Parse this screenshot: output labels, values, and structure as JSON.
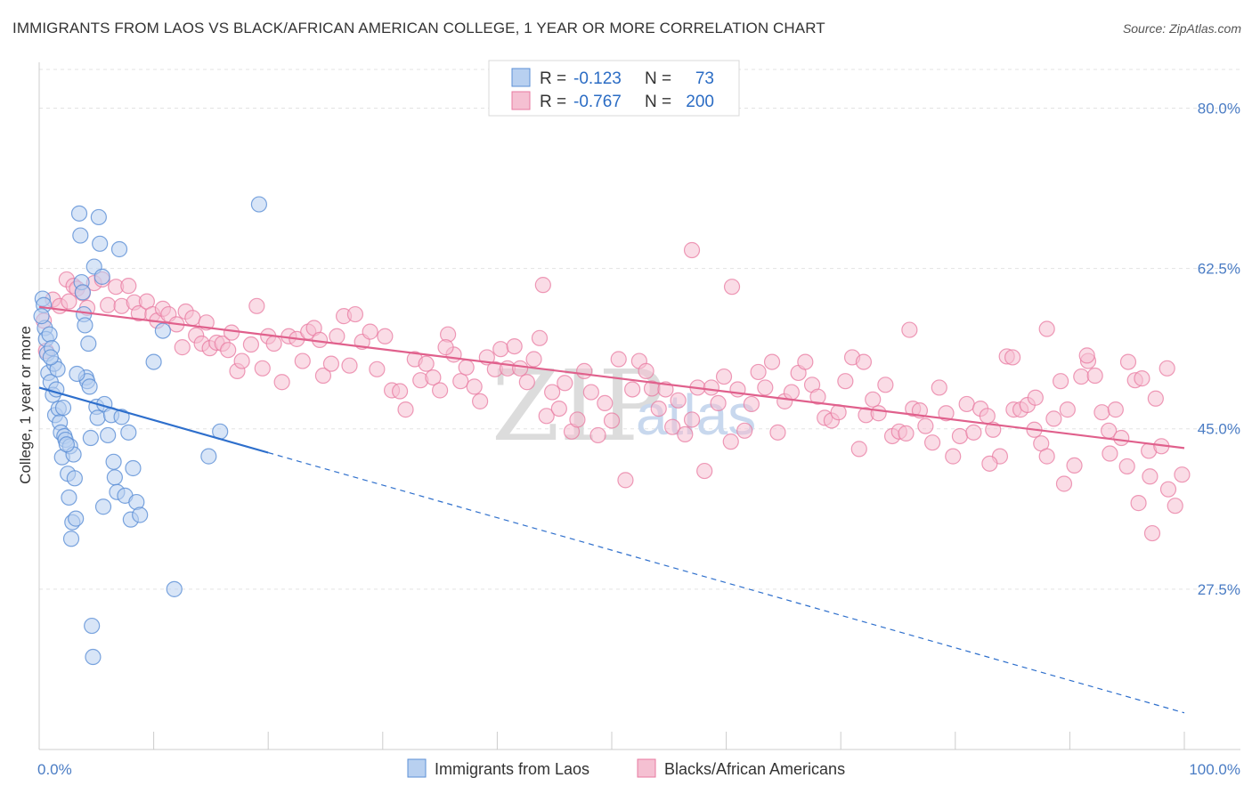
{
  "title": "IMMIGRANTS FROM LAOS VS BLACK/AFRICAN AMERICAN COLLEGE, 1 YEAR OR MORE CORRELATION CHART",
  "source": "Source: ZipAtlas.com",
  "watermark": {
    "zip": "ZIP",
    "atlas": "atlas"
  },
  "colors": {
    "blue": "#5b8fd6",
    "blue_fill": "#b8d0f0",
    "pink": "#e87aa0",
    "pink_fill": "#f5c0d2",
    "blue_line": "#2e6fcc",
    "pink_line": "#e0608c"
  },
  "legend": {
    "rows": [
      {
        "r_label": "R =",
        "r_value": "-0.123",
        "n_label": "N =",
        "n_value": "73"
      },
      {
        "r_label": "R =",
        "r_value": "-0.767",
        "n_label": "N =",
        "n_value": "200"
      }
    ]
  },
  "chart_data": {
    "type": "scatter",
    "title": "IMMIGRANTS FROM LAOS VS BLACK/AFRICAN AMERICAN COLLEGE, 1 YEAR OR MORE CORRELATION CHART",
    "xlabel": "",
    "ylabel": "College, 1 year or more",
    "xlim": [
      0,
      100
    ],
    "ylim": [
      10,
      85
    ],
    "x_tick_labels": [
      "0.0%",
      "100.0%"
    ],
    "y_ticks": [
      27.5,
      45.0,
      62.5,
      80.0
    ],
    "y_tick_labels": [
      "27.5%",
      "45.0%",
      "62.5%",
      "80.0%"
    ],
    "series": [
      {
        "name": "Immigrants from Laos",
        "regression": {
          "x_start": 0,
          "y_start": 49.5,
          "x_solid_end": 20,
          "y_solid_end": 42.4,
          "x_end": 100,
          "y_end": 14.0
        },
        "points": [
          [
            0.3,
            59.2
          ],
          [
            0.4,
            58.5
          ],
          [
            0.5,
            56.0
          ],
          [
            0.6,
            54.8
          ],
          [
            0.7,
            53.2
          ],
          [
            0.8,
            51.1
          ],
          [
            0.9,
            55.3
          ],
          [
            1.0,
            50.1
          ],
          [
            1.1,
            53.8
          ],
          [
            1.2,
            48.7
          ],
          [
            1.3,
            52.1
          ],
          [
            1.4,
            46.5
          ],
          [
            1.5,
            49.3
          ],
          [
            1.6,
            51.5
          ],
          [
            1.7,
            47.2
          ],
          [
            1.8,
            45.7
          ],
          [
            1.9,
            44.6
          ],
          [
            2.0,
            41.9
          ],
          [
            2.1,
            47.3
          ],
          [
            2.2,
            44.2
          ],
          [
            2.3,
            43.8
          ],
          [
            2.5,
            40.1
          ],
          [
            2.6,
            37.5
          ],
          [
            2.7,
            43.1
          ],
          [
            2.8,
            33.0
          ],
          [
            2.9,
            34.8
          ],
          [
            3.0,
            42.2
          ],
          [
            3.1,
            39.6
          ],
          [
            3.2,
            35.2
          ],
          [
            3.5,
            68.5
          ],
          [
            3.6,
            66.1
          ],
          [
            3.7,
            61.0
          ],
          [
            3.8,
            59.9
          ],
          [
            3.9,
            57.5
          ],
          [
            4.0,
            56.3
          ],
          [
            4.1,
            50.6
          ],
          [
            4.2,
            50.2
          ],
          [
            4.3,
            54.3
          ],
          [
            4.4,
            49.6
          ],
          [
            4.5,
            44.0
          ],
          [
            4.8,
            62.7
          ],
          [
            5.0,
            47.4
          ],
          [
            5.1,
            46.2
          ],
          [
            5.2,
            68.1
          ],
          [
            5.3,
            65.2
          ],
          [
            5.5,
            61.6
          ],
          [
            5.6,
            36.5
          ],
          [
            5.7,
            47.7
          ],
          [
            6.0,
            44.3
          ],
          [
            6.3,
            46.5
          ],
          [
            6.5,
            41.4
          ],
          [
            6.6,
            39.7
          ],
          [
            6.8,
            38.1
          ],
          [
            7.0,
            64.6
          ],
          [
            7.2,
            46.3
          ],
          [
            7.5,
            37.7
          ],
          [
            7.8,
            44.6
          ],
          [
            8.0,
            35.1
          ],
          [
            8.2,
            40.7
          ],
          [
            8.5,
            37.0
          ],
          [
            8.8,
            35.6
          ],
          [
            10.0,
            52.3
          ],
          [
            10.8,
            55.7
          ],
          [
            11.8,
            27.5
          ],
          [
            14.8,
            42.0
          ],
          [
            15.8,
            44.7
          ],
          [
            19.2,
            69.5
          ],
          [
            4.6,
            23.5
          ],
          [
            4.7,
            20.1
          ],
          [
            1.0,
            52.8
          ],
          [
            2.4,
            43.3
          ],
          [
            0.2,
            57.3
          ],
          [
            3.3,
            51.0
          ]
        ]
      },
      {
        "name": "Blacks/African Americans",
        "regression": {
          "x_start": 0,
          "y_start": 58.3,
          "x_end": 100,
          "y_end": 42.9
        },
        "points": [
          [
            0.4,
            56.8
          ],
          [
            0.6,
            53.5
          ],
          [
            1.2,
            59.1
          ],
          [
            1.8,
            58.4
          ],
          [
            2.4,
            61.3
          ],
          [
            2.6,
            58.9
          ],
          [
            3.0,
            60.6
          ],
          [
            3.3,
            60.3
          ],
          [
            3.8,
            59.8
          ],
          [
            4.2,
            58.2
          ],
          [
            4.8,
            60.9
          ],
          [
            5.5,
            61.3
          ],
          [
            6.0,
            58.5
          ],
          [
            6.7,
            60.5
          ],
          [
            7.2,
            58.4
          ],
          [
            7.8,
            60.6
          ],
          [
            8.3,
            58.8
          ],
          [
            8.7,
            57.6
          ],
          [
            9.4,
            58.9
          ],
          [
            9.9,
            57.5
          ],
          [
            10.3,
            56.8
          ],
          [
            10.8,
            58.1
          ],
          [
            11.3,
            57.5
          ],
          [
            12.0,
            56.4
          ],
          [
            12.5,
            53.9
          ],
          [
            12.8,
            57.8
          ],
          [
            13.4,
            57.1
          ],
          [
            13.7,
            55.2
          ],
          [
            14.2,
            54.3
          ],
          [
            14.6,
            56.6
          ],
          [
            14.9,
            53.8
          ],
          [
            15.5,
            54.4
          ],
          [
            16.0,
            54.3
          ],
          [
            16.5,
            53.6
          ],
          [
            16.8,
            55.5
          ],
          [
            17.3,
            51.3
          ],
          [
            17.7,
            52.4
          ],
          [
            18.5,
            54.2
          ],
          [
            19.0,
            58.4
          ],
          [
            19.5,
            51.6
          ],
          [
            20.0,
            55.1
          ],
          [
            20.5,
            54.3
          ],
          [
            21.2,
            50.1
          ],
          [
            21.8,
            55.1
          ],
          [
            22.5,
            54.8
          ],
          [
            23.0,
            52.4
          ],
          [
            23.5,
            55.6
          ],
          [
            24.0,
            56.0
          ],
          [
            24.5,
            54.7
          ],
          [
            24.8,
            50.8
          ],
          [
            25.5,
            52.1
          ],
          [
            26.0,
            55.1
          ],
          [
            26.6,
            57.3
          ],
          [
            27.1,
            51.9
          ],
          [
            27.6,
            57.5
          ],
          [
            28.2,
            54.5
          ],
          [
            28.9,
            55.6
          ],
          [
            29.5,
            51.5
          ],
          [
            30.2,
            55.1
          ],
          [
            30.8,
            49.2
          ],
          [
            31.5,
            49.1
          ],
          [
            32.0,
            47.1
          ],
          [
            32.8,
            52.6
          ],
          [
            33.3,
            50.3
          ],
          [
            33.8,
            52.1
          ],
          [
            34.4,
            50.6
          ],
          [
            35.0,
            49.2
          ],
          [
            35.7,
            55.3
          ],
          [
            36.2,
            53.1
          ],
          [
            36.8,
            50.2
          ],
          [
            37.3,
            51.7
          ],
          [
            38.0,
            49.6
          ],
          [
            38.5,
            48.0
          ],
          [
            39.1,
            52.8
          ],
          [
            39.8,
            51.5
          ],
          [
            40.3,
            53.7
          ],
          [
            40.9,
            51.6
          ],
          [
            41.5,
            54.0
          ],
          [
            42.0,
            51.6
          ],
          [
            42.6,
            50.1
          ],
          [
            43.2,
            52.6
          ],
          [
            43.7,
            54.9
          ],
          [
            44.3,
            46.4
          ],
          [
            44.8,
            49.0
          ],
          [
            45.4,
            47.2
          ],
          [
            45.9,
            50.0
          ],
          [
            46.5,
            44.7
          ],
          [
            47.0,
            46.0
          ],
          [
            47.6,
            51.3
          ],
          [
            48.2,
            49.0
          ],
          [
            48.8,
            44.3
          ],
          [
            49.4,
            47.8
          ],
          [
            50.0,
            45.9
          ],
          [
            50.6,
            52.6
          ],
          [
            51.2,
            39.4
          ],
          [
            51.8,
            49.3
          ],
          [
            52.4,
            52.4
          ],
          [
            53.0,
            51.3
          ],
          [
            53.5,
            49.4
          ],
          [
            54.1,
            47.2
          ],
          [
            54.7,
            49.3
          ],
          [
            55.3,
            45.2
          ],
          [
            55.8,
            48.1
          ],
          [
            56.4,
            44.4
          ],
          [
            57.0,
            46.0
          ],
          [
            57.5,
            49.5
          ],
          [
            58.1,
            40.4
          ],
          [
            58.7,
            49.5
          ],
          [
            59.3,
            47.8
          ],
          [
            59.8,
            50.7
          ],
          [
            60.4,
            43.6
          ],
          [
            61.0,
            49.3
          ],
          [
            61.6,
            44.8
          ],
          [
            62.2,
            47.7
          ],
          [
            62.8,
            51.2
          ],
          [
            63.4,
            49.5
          ],
          [
            64.0,
            52.3
          ],
          [
            64.5,
            44.6
          ],
          [
            65.1,
            48.0
          ],
          [
            65.7,
            49.0
          ],
          [
            66.3,
            51.1
          ],
          [
            66.9,
            52.3
          ],
          [
            67.5,
            49.8
          ],
          [
            68.0,
            48.5
          ],
          [
            68.6,
            46.2
          ],
          [
            69.2,
            45.9
          ],
          [
            69.8,
            46.8
          ],
          [
            70.4,
            50.2
          ],
          [
            71.0,
            52.8
          ],
          [
            71.6,
            42.8
          ],
          [
            72.2,
            46.5
          ],
          [
            72.8,
            48.2
          ],
          [
            73.3,
            46.7
          ],
          [
            73.9,
            49.8
          ],
          [
            74.5,
            44.2
          ],
          [
            75.1,
            44.7
          ],
          [
            75.7,
            44.5
          ],
          [
            76.3,
            47.2
          ],
          [
            76.9,
            47.0
          ],
          [
            77.4,
            45.3
          ],
          [
            78.0,
            43.5
          ],
          [
            78.6,
            49.5
          ],
          [
            79.2,
            46.7
          ],
          [
            79.8,
            42.0
          ],
          [
            80.4,
            44.2
          ],
          [
            81.0,
            47.7
          ],
          [
            81.6,
            44.6
          ],
          [
            82.2,
            47.2
          ],
          [
            82.8,
            46.4
          ],
          [
            83.3,
            44.9
          ],
          [
            83.9,
            42.0
          ],
          [
            84.5,
            52.9
          ],
          [
            85.1,
            47.1
          ],
          [
            85.7,
            47.1
          ],
          [
            86.3,
            47.6
          ],
          [
            86.9,
            44.9
          ],
          [
            87.5,
            43.4
          ],
          [
            88.0,
            42.0
          ],
          [
            88.6,
            46.1
          ],
          [
            89.2,
            50.2
          ],
          [
            89.8,
            47.1
          ],
          [
            90.4,
            41.0
          ],
          [
            91.0,
            50.7
          ],
          [
            91.6,
            52.4
          ],
          [
            92.2,
            50.8
          ],
          [
            92.8,
            46.8
          ],
          [
            93.4,
            44.8
          ],
          [
            94.0,
            47.1
          ],
          [
            94.5,
            44.0
          ],
          [
            95.1,
            52.3
          ],
          [
            95.7,
            50.3
          ],
          [
            96.3,
            50.5
          ],
          [
            96.9,
            42.6
          ],
          [
            97.5,
            48.3
          ],
          [
            98.0,
            43.1
          ],
          [
            98.6,
            38.4
          ],
          [
            99.2,
            36.6
          ],
          [
            99.8,
            40.0
          ],
          [
            97.0,
            39.8
          ],
          [
            95.0,
            40.9
          ],
          [
            93.5,
            42.3
          ],
          [
            91.5,
            53.0
          ],
          [
            89.5,
            39.0
          ],
          [
            87.0,
            48.4
          ],
          [
            85.0,
            52.8
          ],
          [
            83.0,
            41.2
          ],
          [
            98.5,
            51.6
          ],
          [
            88.0,
            55.9
          ],
          [
            72.0,
            52.3
          ],
          [
            76.0,
            55.8
          ],
          [
            57.0,
            64.5
          ],
          [
            60.5,
            60.5
          ],
          [
            44.0,
            60.7
          ],
          [
            35.5,
            53.9
          ],
          [
            96.0,
            36.9
          ],
          [
            97.2,
            33.6
          ]
        ]
      }
    ]
  },
  "bottom_legend": {
    "series1": "Immigrants from Laos",
    "series2": "Blacks/African Americans"
  }
}
